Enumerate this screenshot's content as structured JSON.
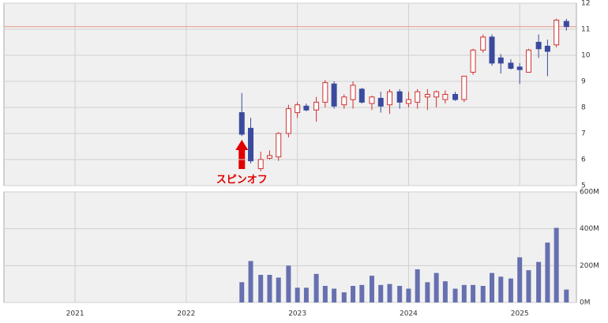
{
  "chart_data": {
    "type": "candlestick",
    "x": [
      2022.5,
      2022.58,
      2022.67,
      2022.75,
      2022.83,
      2022.92,
      2023.0,
      2023.08,
      2023.17,
      2023.25,
      2023.33,
      2023.42,
      2023.5,
      2023.58,
      2023.67,
      2023.75,
      2023.83,
      2023.92,
      2024.0,
      2024.08,
      2024.17,
      2024.25,
      2024.33,
      2024.42,
      2024.5,
      2024.58,
      2024.67,
      2024.75,
      2024.83,
      2024.92,
      2025.0,
      2025.08,
      2025.17,
      2025.25,
      2025.33,
      2025.42
    ],
    "open": [
      7.8,
      7.2,
      5.65,
      6.05,
      6.1,
      7.0,
      7.8,
      8.05,
      7.9,
      8.2,
      8.9,
      8.1,
      8.3,
      8.7,
      8.15,
      8.35,
      8.1,
      8.6,
      8.15,
      8.2,
      8.4,
      8.4,
      8.3,
      8.5,
      8.3,
      9.35,
      10.2,
      10.7,
      9.9,
      9.7,
      9.55,
      9.35,
      10.5,
      10.35,
      10.4,
      11.3
    ],
    "high": [
      8.55,
      7.6,
      6.3,
      6.35,
      7.05,
      8.1,
      8.2,
      8.15,
      8.4,
      9.05,
      9.0,
      8.5,
      9.0,
      8.75,
      8.45,
      8.6,
      8.7,
      8.7,
      8.6,
      8.7,
      8.7,
      8.65,
      8.65,
      8.6,
      9.2,
      10.25,
      10.8,
      10.8,
      10.05,
      9.85,
      9.7,
      10.25,
      10.8,
      10.6,
      11.4,
      11.4
    ],
    "low": [
      6.9,
      5.85,
      5.55,
      6.0,
      5.95,
      6.85,
      7.6,
      7.85,
      7.45,
      8.0,
      7.95,
      7.95,
      7.95,
      8.15,
      7.9,
      7.8,
      7.75,
      7.95,
      8.0,
      7.95,
      7.9,
      8.0,
      8.15,
      8.25,
      8.2,
      9.25,
      10.1,
      9.6,
      9.3,
      9.45,
      8.9,
      9.35,
      9.9,
      9.2,
      10.3,
      10.95
    ],
    "close": [
      6.97,
      5.95,
      6.0,
      6.15,
      7.0,
      7.95,
      8.1,
      7.9,
      8.2,
      8.95,
      8.05,
      8.4,
      8.85,
      8.2,
      8.4,
      8.05,
      8.6,
      8.2,
      8.3,
      8.6,
      8.5,
      8.6,
      8.5,
      8.3,
      9.2,
      10.2,
      10.7,
      9.7,
      9.7,
      9.5,
      9.45,
      10.2,
      10.25,
      10.15,
      11.35,
      11.1
    ],
    "volume": [
      110,
      225,
      150,
      150,
      135,
      200,
      80,
      80,
      155,
      90,
      75,
      55,
      90,
      95,
      145,
      95,
      100,
      90,
      75,
      180,
      110,
      160,
      115,
      75,
      95,
      95,
      90,
      160,
      140,
      130,
      245,
      175,
      220,
      325,
      405,
      70
    ],
    "up_color": "#d03030",
    "down_color": "#3a4a9e",
    "volume_color": "#6670b0",
    "ref_line": 11.1,
    "ref_line_color": "#e8968a",
    "annotation": {
      "text": "スピンオフ",
      "x": 2022.5
    },
    "xlim": [
      2020.36,
      2025.51
    ],
    "xticks": [
      2021,
      2022,
      2023,
      2024,
      2025
    ],
    "ylim": [
      5,
      12
    ],
    "yticks": [
      5,
      6,
      7,
      8,
      9,
      10,
      11,
      12
    ],
    "y2lim": [
      0,
      600
    ],
    "y2ticks": [
      {
        "value": 0,
        "label": "0M"
      },
      {
        "value": 200,
        "label": "200M"
      },
      {
        "value": 400,
        "label": "400M"
      },
      {
        "value": 600,
        "label": "600M"
      }
    ],
    "grid": true
  }
}
